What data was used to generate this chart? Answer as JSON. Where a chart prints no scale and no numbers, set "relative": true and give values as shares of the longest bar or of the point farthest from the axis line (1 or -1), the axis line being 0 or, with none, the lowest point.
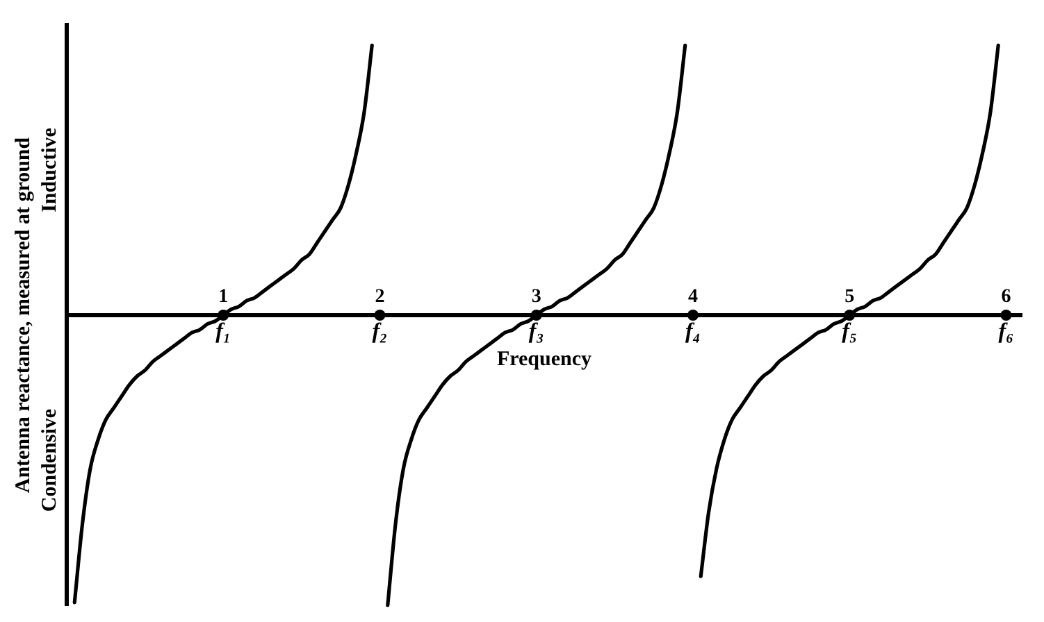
{
  "chart_data": {
    "type": "line",
    "relative": true,
    "xlabel": "Frequency",
    "ylabel": "Antenna reactance, measured at ground",
    "categories": [
      null,
      null,
      null,
      null,
      null,
      null,
      null,
      null,
      null,
      null,
      null,
      null,
      null,
      null,
      null,
      null,
      null,
      null,
      null,
      null,
      "f₁",
      null,
      null,
      null,
      null,
      null,
      null,
      null,
      null,
      null,
      null,
      null,
      null,
      null,
      null,
      null,
      null,
      null,
      null,
      null,
      "f₂",
      null,
      null,
      null,
      null,
      null,
      null,
      null,
      null,
      null,
      null,
      null,
      null,
      null,
      null,
      null,
      null,
      null,
      null,
      null,
      "f₃",
      null,
      null,
      null,
      null,
      null,
      null,
      null,
      null,
      null,
      null,
      null,
      null,
      null,
      null,
      null,
      null,
      null,
      null,
      null,
      "f₄",
      null,
      null,
      null,
      null,
      null,
      null,
      null,
      null,
      null,
      null,
      null,
      null,
      null,
      null,
      null,
      null,
      null,
      null,
      null,
      "f₅",
      null,
      null,
      null,
      null,
      null,
      null,
      null,
      null,
      null,
      null,
      null,
      null,
      null,
      null,
      null,
      null,
      null,
      null,
      null,
      "f₆",
      null,
      null
    ],
    "series": [
      {
        "color": "#000000",
        "values": [
          null,
          -0.99,
          -0.72,
          -0.53,
          -0.43,
          -0.36,
          -0.32,
          -0.28,
          -0.24,
          -0.21,
          -0.19,
          -0.16,
          -0.14,
          -0.12,
          -0.1,
          -0.08,
          -0.06,
          -0.05,
          -0.03,
          -0.02,
          0,
          0.02,
          0.03,
          0.05,
          0.06,
          0.08,
          0.1,
          0.12,
          0.14,
          0.16,
          0.19,
          0.21,
          0.25,
          0.29,
          0.33,
          0.37,
          0.45,
          0.56,
          0.7,
          0.93,
          null,
          -1,
          -0.72,
          -0.53,
          -0.43,
          -0.36,
          -0.32,
          -0.28,
          -0.24,
          -0.21,
          -0.19,
          -0.16,
          -0.14,
          -0.12,
          -0.1,
          -0.08,
          -0.06,
          -0.05,
          -0.03,
          -0.02,
          0,
          0.02,
          0.03,
          0.05,
          0.06,
          0.08,
          0.1,
          0.12,
          0.14,
          0.16,
          0.19,
          0.21,
          0.25,
          0.29,
          0.33,
          0.37,
          0.45,
          0.56,
          0.7,
          0.93,
          null,
          -0.9,
          -0.68,
          -0.53,
          -0.43,
          -0.36,
          -0.32,
          -0.28,
          -0.24,
          -0.21,
          -0.19,
          -0.16,
          -0.14,
          -0.12,
          -0.1,
          -0.08,
          -0.06,
          -0.05,
          -0.03,
          -0.02,
          0,
          0.02,
          0.03,
          0.05,
          0.06,
          0.08,
          0.1,
          0.12,
          0.14,
          0.16,
          0.19,
          0.21,
          0.25,
          0.29,
          0.33,
          0.37,
          0.45,
          0.56,
          0.7,
          0.93,
          null,
          null,
          null
        ]
      }
    ],
    "annotations": [
      "Inductive",
      "Condensive",
      {
        "text": "1",
        "x": "f₁",
        "y": 0
      },
      {
        "text": "2",
        "x": "f₂",
        "y": 0
      },
      {
        "text": "3",
        "x": "f₃",
        "y": 0
      },
      {
        "text": "4",
        "x": "f₄",
        "y": 0
      },
      {
        "text": "5",
        "x": "f₅",
        "y": 0
      },
      {
        "text": "6",
        "x": "f₆",
        "y": 0
      }
    ],
    "grid": false,
    "legend": false,
    "marker": "none",
    "line_style": "solid"
  }
}
